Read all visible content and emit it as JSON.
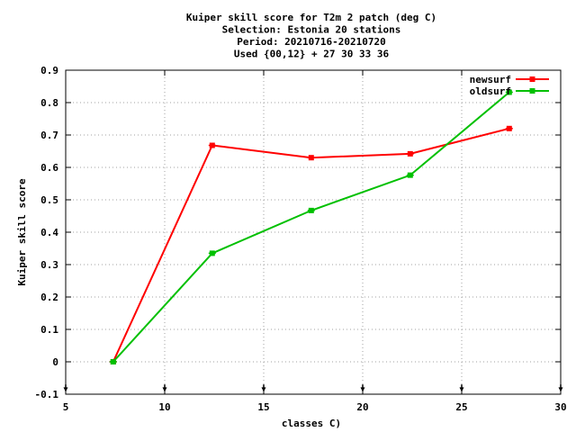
{
  "chart_data": {
    "type": "line",
    "title_lines": [
      "Kuiper skill score  for T2m 2 patch (deg C)",
      "Selection: Estonia     20 stations",
      "Period: 20210716-20210720",
      "Used {00,12} + 27 30 33 36"
    ],
    "xlabel": "classes C)",
    "ylabel": "Kuiper skill score",
    "xlim": [
      5,
      30
    ],
    "ylim": [
      -0.1,
      0.9
    ],
    "x_ticks": [
      5,
      10,
      15,
      20,
      25,
      30
    ],
    "x_tick_labels": [
      "5",
      "10",
      "15",
      "20",
      "25",
      "30"
    ],
    "y_ticks": [
      -0.1,
      0,
      0.1,
      0.2,
      0.3,
      0.4,
      0.5,
      0.6,
      0.7,
      0.8,
      0.9
    ],
    "y_tick_labels": [
      "-0.1",
      "0",
      "0.1",
      "0.2",
      "0.3",
      "0.4",
      "0.5",
      "0.6",
      "0.7",
      "0.8",
      "0.9"
    ],
    "grid": true,
    "legend_position": "top-right",
    "bottom_arrow_x": [
      5,
      10,
      15,
      20,
      25,
      30
    ],
    "series": [
      {
        "name": "newsurf",
        "color": "#ff0000",
        "x": [
          7.4,
          12.4,
          17.4,
          22.4,
          27.4
        ],
        "y": [
          0.0,
          0.668,
          0.63,
          0.642,
          0.72
        ]
      },
      {
        "name": "oldsurf",
        "color": "#00c000",
        "x": [
          7.4,
          12.4,
          17.4,
          22.4,
          27.4
        ],
        "y": [
          0.0,
          0.335,
          0.467,
          0.576,
          0.832
        ]
      }
    ]
  }
}
